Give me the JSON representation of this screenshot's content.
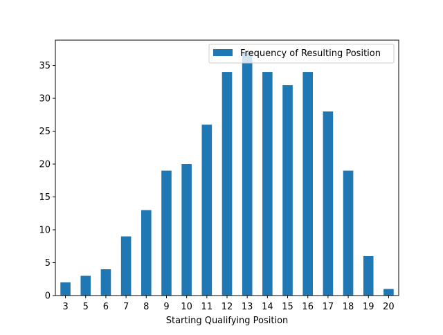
{
  "chart_data": {
    "type": "bar",
    "categories": [
      "3",
      "5",
      "6",
      "7",
      "8",
      "9",
      "10",
      "11",
      "12",
      "13",
      "14",
      "15",
      "16",
      "17",
      "18",
      "19",
      "20"
    ],
    "series": [
      {
        "name": "Frequency of Resulting Position",
        "values": [
          2,
          3,
          4,
          9,
          13,
          19,
          20,
          26,
          34,
          37,
          34,
          32,
          34,
          28,
          19,
          6,
          1
        ],
        "color": "#1f77b4"
      }
    ],
    "title": "",
    "xlabel": "Starting Qualifying Position",
    "ylabel": "",
    "ylim": [
      0,
      38.85
    ],
    "yticks": [
      0,
      5,
      10,
      15,
      20,
      25,
      30,
      35
    ],
    "grid": false,
    "legend_position": "top-right"
  }
}
